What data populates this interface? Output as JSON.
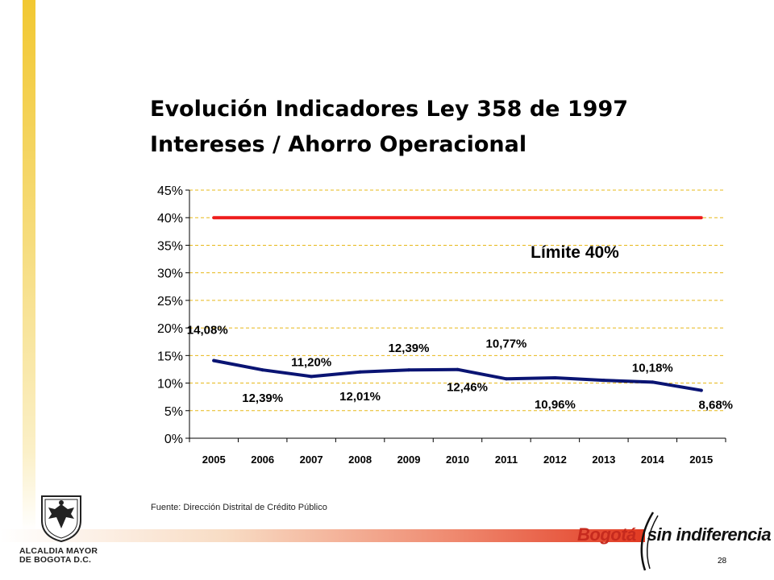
{
  "title": {
    "line1": "Evolución Indicadores Ley 358 de 1997",
    "line2": "Intereses / Ahorro Operacional"
  },
  "source": "Fuente: Dirección Distrital de Crédito Público",
  "logo": {
    "line1": "ALCALDIA MAYOR",
    "line2": "DE BOGOTA D.C."
  },
  "brand": {
    "part1": "Bogotá",
    "part2": "sin indiferencia"
  },
  "page_number": "28",
  "colors": {
    "limit": "#ee1c1c",
    "series": "#0a1473",
    "grid": "#e7b818",
    "sidebar": "#f2c832",
    "band": "#e23a22"
  },
  "chart_data": {
    "type": "line",
    "title": "",
    "xlabel": "",
    "ylabel": "",
    "categories": [
      "2005",
      "2006",
      "2007",
      "2008",
      "2009",
      "2010",
      "2011",
      "2012",
      "2013",
      "2014",
      "2015"
    ],
    "ylim": [
      0,
      45
    ],
    "yticks": [
      0,
      5,
      10,
      15,
      20,
      25,
      30,
      35,
      40,
      45
    ],
    "ytick_labels": [
      "0%",
      "5%",
      "10%",
      "15%",
      "20%",
      "25%",
      "30%",
      "35%",
      "40%",
      "45%"
    ],
    "grid": true,
    "series": [
      {
        "name": "Intereses / Ahorro Operacional",
        "values": [
          14.08,
          12.39,
          11.2,
          12.01,
          12.39,
          12.46,
          10.77,
          10.96,
          10.5,
          10.18,
          8.68
        ],
        "labels": [
          "14,08%",
          "12,39%",
          "11,20%",
          "12,01%",
          "12,39%",
          "12,46%",
          "10,77%",
          "10,96%",
          null,
          "10,18%",
          "8,68%"
        ]
      },
      {
        "name": "Límite",
        "values": [
          40,
          40,
          40,
          40,
          40,
          40,
          40,
          40,
          40,
          40,
          40
        ]
      }
    ],
    "annotations": [
      {
        "text": "Límite 40%",
        "series": "Límite"
      }
    ]
  }
}
